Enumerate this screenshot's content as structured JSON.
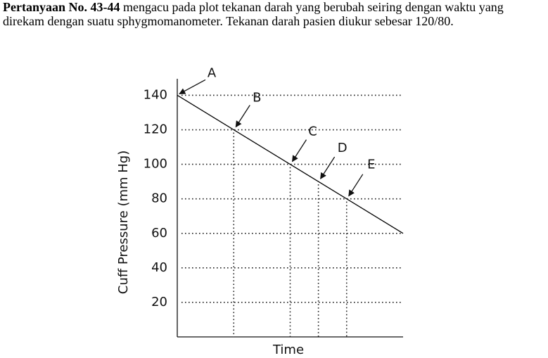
{
  "question": {
    "lead": "Pertanyaan No. 43-44",
    "text": " mengacu pada plot tekanan darah yang berubah seiring dengan waktu yang direkam dengan suatu sphygmomanometer. Tekanan darah pasien diukur sebesar 120/80."
  },
  "chart_data": {
    "type": "line",
    "xlabel": "Time",
    "ylabel": "Cuff Pressure (mm Hg)",
    "x": [
      0,
      80
    ],
    "values": [
      140,
      60
    ],
    "color": "#000000",
    "xlim": [
      0,
      80
    ],
    "ylim": [
      0,
      152
    ],
    "yticks": [
      20,
      40,
      60,
      80,
      100,
      120,
      140
    ],
    "grid": true,
    "points": [
      {
        "label": "A",
        "x": 0,
        "y": 140
      },
      {
        "label": "B",
        "x": 20,
        "y": 120
      },
      {
        "label": "C",
        "x": 40,
        "y": 100
      },
      {
        "label": "D",
        "x": 50,
        "y": 90
      },
      {
        "label": "E",
        "x": 60,
        "y": 80
      }
    ]
  }
}
